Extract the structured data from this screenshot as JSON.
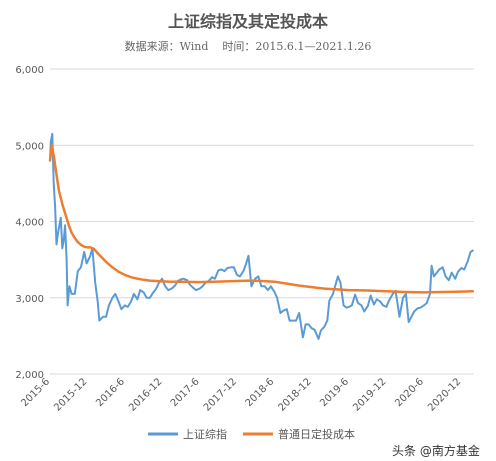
{
  "chart_data": {
    "type": "line",
    "title": "上证综指及其定投成本",
    "subtitle": "数据来源：Wind    时间：2015.6.1—2021.1.26",
    "xlabel": "",
    "ylabel": "",
    "ylim": [
      2000,
      6000
    ],
    "y_ticks": [
      2000,
      3000,
      4000,
      5000,
      6000
    ],
    "y_tick_labels": [
      "2,000",
      "3,000",
      "4,000",
      "5,000",
      "6,000"
    ],
    "x_range": [
      "2015-06",
      "2021-02"
    ],
    "x_ticks": [
      {
        "date": "2015-06",
        "label": "2015-6"
      },
      {
        "date": "2015-12",
        "label": "2015-12"
      },
      {
        "date": "2016-06",
        "label": "2016-6"
      },
      {
        "date": "2016-12",
        "label": "2016-12"
      },
      {
        "date": "2017-06",
        "label": "2017-6"
      },
      {
        "date": "2017-12",
        "label": "2017-12"
      },
      {
        "date": "2018-06",
        "label": "2018-6"
      },
      {
        "date": "2018-12",
        "label": "2018-12"
      },
      {
        "date": "2019-06",
        "label": "2019-6"
      },
      {
        "date": "2019-12",
        "label": "2019-12"
      },
      {
        "date": "2020-06",
        "label": "2020-6"
      },
      {
        "date": "2020-12",
        "label": "2020-12"
      }
    ],
    "grid": "horizontal",
    "legend_position": "bottom",
    "series": [
      {
        "name": "上证综指",
        "color": "#5B9BD5",
        "points": [
          [
            "2015-06-01",
            4800
          ],
          [
            "2015-06-05",
            5050
          ],
          [
            "2015-06-12",
            5150
          ],
          [
            "2015-06-19",
            4500
          ],
          [
            "2015-06-26",
            4200
          ],
          [
            "2015-07-03",
            3700
          ],
          [
            "2015-07-10",
            3850
          ],
          [
            "2015-07-17",
            3950
          ],
          [
            "2015-07-24",
            4050
          ],
          [
            "2015-07-31",
            3650
          ],
          [
            "2015-08-07",
            3750
          ],
          [
            "2015-08-14",
            3950
          ],
          [
            "2015-08-21",
            3500
          ],
          [
            "2015-08-26",
            2900
          ],
          [
            "2015-09-04",
            3150
          ],
          [
            "2015-09-15",
            3050
          ],
          [
            "2015-09-30",
            3050
          ],
          [
            "2015-10-15",
            3350
          ],
          [
            "2015-10-30",
            3400
          ],
          [
            "2015-11-15",
            3600
          ],
          [
            "2015-11-27",
            3450
          ],
          [
            "2015-12-15",
            3550
          ],
          [
            "2015-12-25",
            3650
          ],
          [
            "2016-01-08",
            3200
          ],
          [
            "2016-01-20",
            2950
          ],
          [
            "2016-01-28",
            2700
          ],
          [
            "2016-02-15",
            2750
          ],
          [
            "2016-03-01",
            2750
          ],
          [
            "2016-03-15",
            2900
          ],
          [
            "2016-04-01",
            3000
          ],
          [
            "2016-04-15",
            3050
          ],
          [
            "2016-05-01",
            2950
          ],
          [
            "2016-05-15",
            2850
          ],
          [
            "2016-06-01",
            2900
          ],
          [
            "2016-06-15",
            2880
          ],
          [
            "2016-07-01",
            2950
          ],
          [
            "2016-07-15",
            3050
          ],
          [
            "2016-08-01",
            2980
          ],
          [
            "2016-08-15",
            3100
          ],
          [
            "2016-09-01",
            3070
          ],
          [
            "2016-09-15",
            3000
          ],
          [
            "2016-10-01",
            3000
          ],
          [
            "2016-10-15",
            3060
          ],
          [
            "2016-11-01",
            3120
          ],
          [
            "2016-11-15",
            3200
          ],
          [
            "2016-11-30",
            3250
          ],
          [
            "2016-12-15",
            3150
          ],
          [
            "2016-12-30",
            3100
          ],
          [
            "2017-01-15",
            3120
          ],
          [
            "2017-02-01",
            3160
          ],
          [
            "2017-02-15",
            3220
          ],
          [
            "2017-03-01",
            3240
          ],
          [
            "2017-03-15",
            3250
          ],
          [
            "2017-04-01",
            3230
          ],
          [
            "2017-04-15",
            3170
          ],
          [
            "2017-05-01",
            3130
          ],
          [
            "2017-05-15",
            3100
          ],
          [
            "2017-06-01",
            3120
          ],
          [
            "2017-06-15",
            3150
          ],
          [
            "2017-07-01",
            3200
          ],
          [
            "2017-07-15",
            3220
          ],
          [
            "2017-08-01",
            3270
          ],
          [
            "2017-08-15",
            3250
          ],
          [
            "2017-09-01",
            3360
          ],
          [
            "2017-09-15",
            3370
          ],
          [
            "2017-10-01",
            3350
          ],
          [
            "2017-10-15",
            3390
          ],
          [
            "2017-11-01",
            3400
          ],
          [
            "2017-11-15",
            3400
          ],
          [
            "2017-12-01",
            3300
          ],
          [
            "2017-12-15",
            3280
          ],
          [
            "2018-01-01",
            3350
          ],
          [
            "2018-01-15",
            3450
          ],
          [
            "2018-01-26",
            3550
          ],
          [
            "2018-02-09",
            3150
          ],
          [
            "2018-02-28",
            3250
          ],
          [
            "2018-03-15",
            3280
          ],
          [
            "2018-03-30",
            3150
          ],
          [
            "2018-04-15",
            3150
          ],
          [
            "2018-05-01",
            3100
          ],
          [
            "2018-05-15",
            3150
          ],
          [
            "2018-06-01",
            3080
          ],
          [
            "2018-06-15",
            3000
          ],
          [
            "2018-07-01",
            2800
          ],
          [
            "2018-07-15",
            2830
          ],
          [
            "2018-08-01",
            2850
          ],
          [
            "2018-08-15",
            2700
          ],
          [
            "2018-09-01",
            2700
          ],
          [
            "2018-09-15",
            2700
          ],
          [
            "2018-10-01",
            2800
          ],
          [
            "2018-10-19",
            2480
          ],
          [
            "2018-11-01",
            2650
          ],
          [
            "2018-11-15",
            2650
          ],
          [
            "2018-12-01",
            2600
          ],
          [
            "2018-12-15",
            2580
          ],
          [
            "2019-01-03",
            2460
          ],
          [
            "2019-01-15",
            2570
          ],
          [
            "2019-02-01",
            2620
          ],
          [
            "2019-02-15",
            2700
          ],
          [
            "2019-02-25",
            2960
          ],
          [
            "2019-03-15",
            3050
          ],
          [
            "2019-04-08",
            3280
          ],
          [
            "2019-04-20",
            3200
          ],
          [
            "2019-05-06",
            2900
          ],
          [
            "2019-05-20",
            2870
          ],
          [
            "2019-06-01",
            2880
          ],
          [
            "2019-06-15",
            2900
          ],
          [
            "2019-07-01",
            3040
          ],
          [
            "2019-07-15",
            2930
          ],
          [
            "2019-08-01",
            2900
          ],
          [
            "2019-08-15",
            2820
          ],
          [
            "2019-09-01",
            2890
          ],
          [
            "2019-09-15",
            3030
          ],
          [
            "2019-10-01",
            2910
          ],
          [
            "2019-10-15",
            2980
          ],
          [
            "2019-11-01",
            2950
          ],
          [
            "2019-11-15",
            2900
          ],
          [
            "2019-12-01",
            2880
          ],
          [
            "2019-12-15",
            2970
          ],
          [
            "2020-01-01",
            3050
          ],
          [
            "2020-01-15",
            3090
          ],
          [
            "2020-02-03",
            2750
          ],
          [
            "2020-02-20",
            3000
          ],
          [
            "2020-03-05",
            3050
          ],
          [
            "2020-03-19",
            2680
          ],
          [
            "2020-04-01",
            2750
          ],
          [
            "2020-04-15",
            2820
          ],
          [
            "2020-05-01",
            2860
          ],
          [
            "2020-05-15",
            2870
          ],
          [
            "2020-06-01",
            2900
          ],
          [
            "2020-06-15",
            2930
          ],
          [
            "2020-07-01",
            3050
          ],
          [
            "2020-07-09",
            3420
          ],
          [
            "2020-07-20",
            3280
          ],
          [
            "2020-08-01",
            3320
          ],
          [
            "2020-08-15",
            3370
          ],
          [
            "2020-09-01",
            3400
          ],
          [
            "2020-09-15",
            3280
          ],
          [
            "2020-10-01",
            3230
          ],
          [
            "2020-10-15",
            3330
          ],
          [
            "2020-11-01",
            3250
          ],
          [
            "2020-11-15",
            3340
          ],
          [
            "2020-12-01",
            3390
          ],
          [
            "2020-12-15",
            3370
          ],
          [
            "2020-12-31",
            3470
          ],
          [
            "2021-01-15",
            3600
          ],
          [
            "2021-01-26",
            3620
          ]
        ]
      },
      {
        "name": "普通日定投成本",
        "color": "#ED7D31",
        "points": [
          [
            "2015-06-01",
            4800
          ],
          [
            "2015-06-10",
            5000
          ],
          [
            "2015-06-20",
            4850
          ],
          [
            "2015-07-01",
            4650
          ],
          [
            "2015-07-15",
            4400
          ],
          [
            "2015-08-01",
            4220
          ],
          [
            "2015-08-15",
            4100
          ],
          [
            "2015-09-01",
            3950
          ],
          [
            "2015-09-15",
            3850
          ],
          [
            "2015-10-01",
            3780
          ],
          [
            "2015-10-15",
            3730
          ],
          [
            "2015-11-01",
            3690
          ],
          [
            "2015-11-15",
            3670
          ],
          [
            "2015-12-01",
            3660
          ],
          [
            "2015-12-15",
            3660
          ],
          [
            "2016-01-01",
            3640
          ],
          [
            "2016-01-15",
            3600
          ],
          [
            "2016-02-01",
            3550
          ],
          [
            "2016-03-01",
            3470
          ],
          [
            "2016-04-01",
            3400
          ],
          [
            "2016-05-01",
            3340
          ],
          [
            "2016-06-01",
            3300
          ],
          [
            "2016-07-01",
            3270
          ],
          [
            "2016-08-01",
            3250
          ],
          [
            "2016-09-01",
            3235
          ],
          [
            "2016-10-01",
            3225
          ],
          [
            "2016-11-01",
            3220
          ],
          [
            "2016-12-01",
            3215
          ],
          [
            "2017-01-01",
            3212
          ],
          [
            "2017-03-01",
            3210
          ],
          [
            "2017-06-01",
            3205
          ],
          [
            "2017-09-01",
            3212
          ],
          [
            "2017-12-01",
            3220
          ],
          [
            "2018-02-01",
            3225
          ],
          [
            "2018-04-01",
            3220
          ],
          [
            "2018-06-01",
            3210
          ],
          [
            "2018-08-01",
            3185
          ],
          [
            "2018-10-01",
            3160
          ],
          [
            "2018-12-01",
            3140
          ],
          [
            "2019-02-01",
            3120
          ],
          [
            "2019-04-01",
            3110
          ],
          [
            "2019-06-01",
            3100
          ],
          [
            "2019-09-01",
            3095
          ],
          [
            "2019-12-01",
            3085
          ],
          [
            "2020-03-01",
            3075
          ],
          [
            "2020-06-01",
            3070
          ],
          [
            "2020-09-01",
            3075
          ],
          [
            "2020-12-01",
            3080
          ],
          [
            "2021-01-26",
            3085
          ]
        ]
      }
    ]
  },
  "watermark": {
    "text": "头条 @南方基金",
    "icon": "toutiao-logo-icon"
  }
}
